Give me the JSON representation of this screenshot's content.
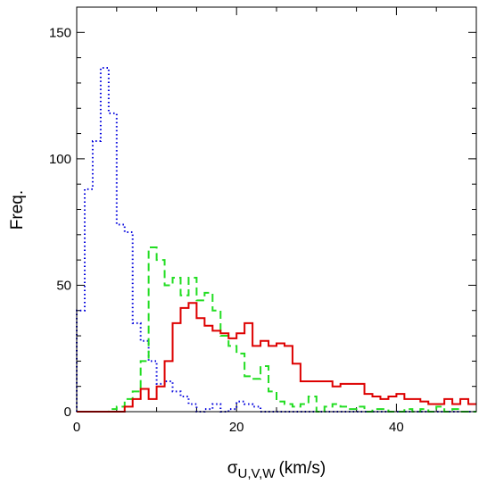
{
  "chart_data": {
    "type": "histogram",
    "title": "",
    "xlabel": "σU,V,W (km/s)",
    "xlabel_parts": {
      "symbol": "σ",
      "subscript": "U,V,W",
      "unit": "(km/s)"
    },
    "ylabel": "Freq.",
    "xlim": [
      0,
      50
    ],
    "ylim": [
      0,
      160
    ],
    "xticks": [
      0,
      20,
      40
    ],
    "yticks": [
      0,
      50,
      100,
      150
    ],
    "grid": false,
    "legend": "none",
    "bin_width": 1,
    "series": [
      {
        "color": "#0000dd",
        "line_style": "dotted",
        "bin_edges": [
          0,
          1,
          2,
          3,
          4,
          5,
          6,
          7,
          8,
          9,
          10,
          11,
          12,
          13,
          14,
          15,
          16,
          17,
          18,
          19,
          20,
          21,
          22,
          23,
          24,
          25,
          26,
          27,
          28,
          29,
          30,
          31,
          32,
          33,
          34,
          35,
          36,
          37,
          38,
          39,
          40,
          41,
          42,
          43,
          44,
          45,
          46,
          47,
          48,
          49,
          50
        ],
        "values": [
          40,
          88,
          107,
          136,
          118,
          74,
          71,
          35,
          28,
          20,
          11,
          12,
          8,
          6,
          3,
          0,
          1,
          3,
          0,
          1,
          4,
          3,
          2,
          0,
          0,
          0,
          0,
          0,
          0,
          0,
          0,
          0,
          0,
          0,
          0,
          0,
          0,
          0,
          0,
          0,
          0,
          0,
          0,
          0,
          0,
          0,
          0,
          0,
          0,
          0
        ]
      },
      {
        "color": "#22dd22",
        "line_style": "dashed",
        "bin_edges": [
          0,
          1,
          2,
          3,
          4,
          5,
          6,
          7,
          8,
          9,
          10,
          11,
          12,
          13,
          14,
          15,
          16,
          17,
          18,
          19,
          20,
          21,
          22,
          23,
          24,
          25,
          26,
          27,
          28,
          29,
          30,
          31,
          32,
          33,
          34,
          35,
          36,
          37,
          38,
          39,
          40,
          41,
          42,
          43,
          44,
          45,
          46,
          47,
          48,
          49,
          50
        ],
        "values": [
          0,
          0,
          0,
          0,
          1,
          2,
          5,
          8,
          20,
          65,
          60,
          50,
          53,
          46,
          53,
          44,
          47,
          40,
          30,
          26,
          23,
          14,
          13,
          18,
          8,
          4,
          3,
          2,
          3,
          6,
          0,
          2,
          3,
          2,
          1,
          2,
          0,
          1,
          1,
          0,
          0,
          1,
          0,
          1,
          0,
          2,
          0,
          1,
          0,
          0
        ]
      },
      {
        "color": "#dd0000",
        "line_style": "solid",
        "bin_edges": [
          0,
          1,
          2,
          3,
          4,
          5,
          6,
          7,
          8,
          9,
          10,
          11,
          12,
          13,
          14,
          15,
          16,
          17,
          18,
          19,
          20,
          21,
          22,
          23,
          24,
          25,
          26,
          27,
          28,
          29,
          30,
          31,
          32,
          33,
          34,
          35,
          36,
          37,
          38,
          39,
          40,
          41,
          42,
          43,
          44,
          45,
          46,
          47,
          48,
          49,
          50
        ],
        "values": [
          0,
          0,
          0,
          0,
          0,
          0,
          2,
          5,
          9,
          5,
          10,
          20,
          35,
          41,
          43,
          37,
          34,
          32,
          31,
          29,
          31,
          35,
          26,
          28,
          26,
          27,
          26,
          19,
          12,
          12,
          12,
          12,
          10,
          11,
          11,
          11,
          7,
          6,
          5,
          6,
          7,
          5,
          5,
          4,
          3,
          3,
          5,
          3,
          5,
          3
        ]
      }
    ]
  }
}
